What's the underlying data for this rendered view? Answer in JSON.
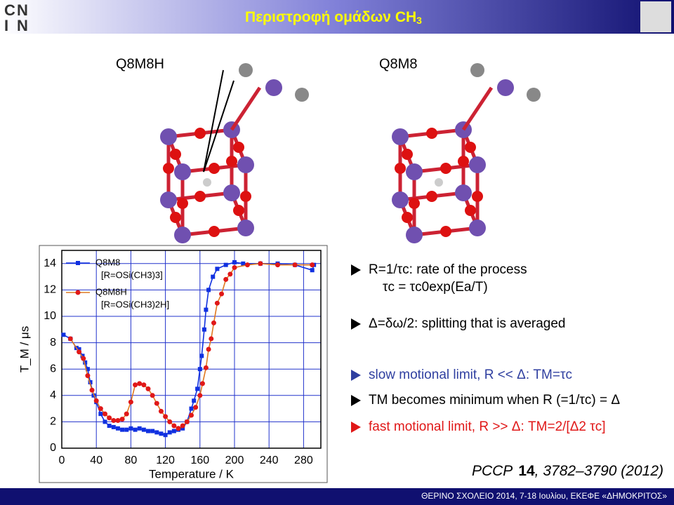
{
  "header": {
    "title": "Περιστροφή ομάδων CH",
    "title_sub": "3"
  },
  "molecules": [
    {
      "label": "Q8M8H"
    },
    {
      "label": "Q8M8"
    }
  ],
  "chart_data": {
    "type": "line",
    "xlabel": "Temperature / K",
    "ylabel": "T_M / μs",
    "xlim": [
      0,
      300
    ],
    "ylim": [
      0,
      15
    ],
    "xticks": [
      0,
      40,
      80,
      120,
      160,
      200,
      240,
      280
    ],
    "yticks": [
      0,
      2,
      4,
      6,
      8,
      10,
      12,
      14
    ],
    "grid": true,
    "grid_color": "#2233cc",
    "legend": "upper left",
    "series": [
      {
        "name": "Q8M8",
        "note": "[R=OSi(CH3)3]",
        "color": "#1030e0",
        "line_color": "#1030e0",
        "marker": "square",
        "x": [
          2,
          10,
          17,
          20,
          24,
          27,
          30,
          33,
          37,
          40,
          45,
          50,
          55,
          60,
          65,
          70,
          75,
          80,
          85,
          90,
          95,
          100,
          105,
          110,
          115,
          120,
          125,
          130,
          135,
          140,
          145,
          150,
          153,
          157,
          160,
          162,
          165,
          167,
          170,
          175,
          180,
          190,
          200,
          210,
          230,
          250,
          270,
          290,
          292
        ],
        "values": [
          8.6,
          8.3,
          7.6,
          7.5,
          7.0,
          6.5,
          6.0,
          5.0,
          4.0,
          3.5,
          2.6,
          2.0,
          1.7,
          1.6,
          1.5,
          1.4,
          1.4,
          1.5,
          1.4,
          1.5,
          1.4,
          1.3,
          1.3,
          1.2,
          1.1,
          1.0,
          1.2,
          1.3,
          1.4,
          1.5,
          2.0,
          3.0,
          3.6,
          4.5,
          6.0,
          7.0,
          9.0,
          10.5,
          12.0,
          13.0,
          13.6,
          13.9,
          14.1,
          14.0,
          14.0,
          14.0,
          13.9,
          13.5,
          13.9
        ]
      },
      {
        "name": "Q8M8H",
        "note": "[R=OSi(CH3)2H]",
        "color": "#e01818",
        "line_color": "#e07820",
        "marker": "circle",
        "x": [
          10,
          20,
          25,
          30,
          35,
          40,
          45,
          50,
          55,
          60,
          65,
          70,
          75,
          80,
          85,
          90,
          95,
          100,
          105,
          110,
          115,
          120,
          125,
          130,
          135,
          140,
          145,
          150,
          155,
          160,
          163,
          167,
          170,
          173,
          176,
          180,
          185,
          190,
          195,
          200,
          215,
          230,
          250,
          270,
          290
        ],
        "values": [
          8.3,
          7.3,
          6.8,
          5.5,
          4.4,
          3.6,
          3.0,
          2.6,
          2.3,
          2.1,
          2.1,
          2.2,
          2.6,
          3.5,
          4.8,
          4.9,
          4.8,
          4.5,
          4.0,
          3.4,
          2.8,
          2.4,
          2.0,
          1.7,
          1.5,
          1.7,
          2.0,
          2.5,
          3.1,
          4.0,
          4.9,
          6.1,
          7.5,
          8.3,
          9.5,
          11.0,
          11.7,
          12.8,
          13.2,
          13.7,
          13.9,
          14.0,
          13.9,
          13.9,
          13.9
        ]
      }
    ]
  },
  "bullets": [
    "R=1/τc: rate of the process",
    "τc = τc0exp(Ea/T)",
    "Δ=δω/2: splitting that is averaged",
    "slow motional limit, R << Δ: TM=τc",
    "TM becomes minimum when R (=1/τc) = Δ",
    "fast motional limit, R >> Δ: TM=2/[Δ2 τc]"
  ],
  "citation": {
    "journal": "PCCP",
    "volume": "14",
    "rest": ", 3782–3790 (2012)"
  },
  "footer": "ΘΕΡΙΝΟ ΣΧΟΛΕΙΟ 2014, 7-18 Ιουλίου, ΕΚΕΦΕ «ΔΗΜΟΚΡΙΤΟΣ»"
}
